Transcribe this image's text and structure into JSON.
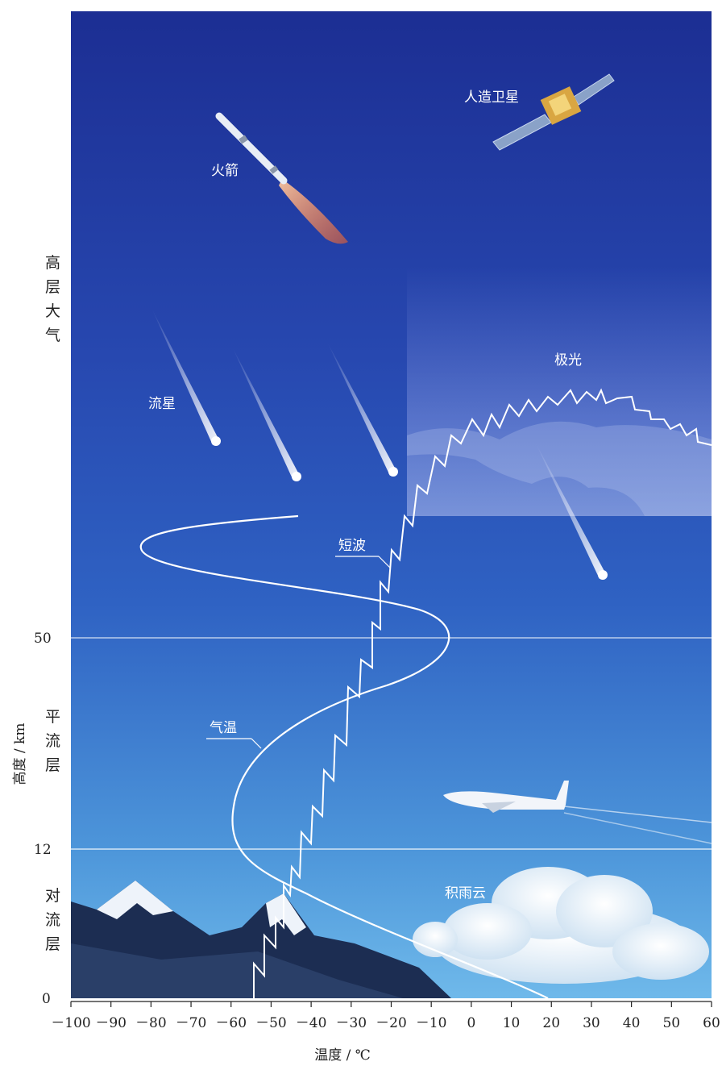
{
  "labels": {
    "satellite": "人造卫星",
    "rocket": "火箭",
    "meteor": "流星",
    "aurora": "极光",
    "shortwave": "短波",
    "temperature": "气温",
    "cumulonimbus": "积雨云"
  },
  "layers": {
    "upper": [
      "高",
      "层",
      "大",
      "气"
    ],
    "stratosphere": [
      "平",
      "流",
      "层"
    ],
    "troposphere": [
      "对",
      "流",
      "层"
    ]
  },
  "y_axis": {
    "label": "高度 / km",
    "ticks": [
      "50",
      "12",
      "0"
    ]
  },
  "x_axis": {
    "label": "温度 / ℃",
    "ticks": [
      "－100",
      "－90",
      "－80",
      "－70",
      "－60",
      "－50",
      "－40",
      "－30",
      "－20",
      "－10",
      "0",
      "10",
      "20",
      "30",
      "40",
      "50",
      "60"
    ],
    "range": [
      -100,
      60
    ]
  },
  "colors": {
    "sky_top": "#1e3296",
    "sky_mid": "#2f5ec0",
    "sky_low": "#5aa8e2",
    "line": "#ffffff"
  }
}
